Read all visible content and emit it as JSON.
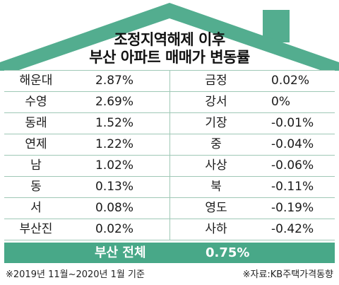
{
  "title": {
    "line1": "조정지역해제 이후",
    "line2": "부산 아파트 매매가 변동률"
  },
  "rows_left": [
    {
      "name": "해운대",
      "value": "2.87%"
    },
    {
      "name": "수영",
      "value": "2.69%"
    },
    {
      "name": "동래",
      "value": "1.52%"
    },
    {
      "name": "연제",
      "value": "1.22%"
    },
    {
      "name": "남",
      "value": "1.02%"
    },
    {
      "name": "동",
      "value": "0.13%"
    },
    {
      "name": "서",
      "value": "0.08%"
    },
    {
      "name": "부산진",
      "value": "0.02%"
    }
  ],
  "rows_right": [
    {
      "name": "금정",
      "value": "0.02%"
    },
    {
      "name": "강서",
      "value": "0%"
    },
    {
      "name": "기장",
      "value": "-0.01%"
    },
    {
      "name": "중",
      "value": "-0.04%"
    },
    {
      "name": "사상",
      "value": "-0.06%"
    },
    {
      "name": "북",
      "value": "-0.11%"
    },
    {
      "name": "영도",
      "value": "-0.19%"
    },
    {
      "name": "사하",
      "value": "-0.42%"
    }
  ],
  "total": {
    "label": "부산 전체",
    "value": "0.75%"
  },
  "footnote_period": "※2019년 11월~2020년 1월 기준",
  "footnote_source": "※자료:KB주택가격동향",
  "colors": {
    "roof": "#53ad8f",
    "total_bar": "#48a888",
    "grid": "#9fc8b6"
  }
}
